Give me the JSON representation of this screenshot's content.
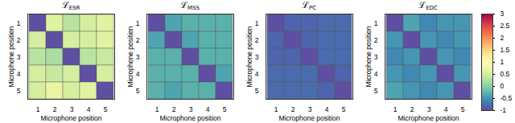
{
  "chart_data": [
    {
      "type": "heatmap",
      "title": "ℒESR",
      "x": [
        1,
        2,
        3,
        4,
        5
      ],
      "y": [
        1,
        2,
        3,
        4,
        5
      ],
      "xlabel": "Microphone position",
      "ylabel": "Microphone position",
      "zlim": [
        -1,
        3
      ],
      "values": [
        [
          -1,
          0.6,
          0.3,
          0.5,
          0.6
        ],
        [
          0.5,
          -1,
          0.5,
          0.5,
          0.6
        ],
        [
          0.3,
          0.2,
          -1,
          0.3,
          0.4
        ],
        [
          0.5,
          0.4,
          0.5,
          -1,
          0.5
        ],
        [
          0.5,
          0.7,
          0.5,
          0.6,
          -1
        ]
      ]
    },
    {
      "type": "heatmap",
      "title": "ℒMSS",
      "x": [
        1,
        2,
        3,
        4,
        5
      ],
      "y": [
        1,
        2,
        3,
        4,
        5
      ],
      "xlabel": "Microphone position",
      "ylabel": "Microphone position",
      "zlim": [
        -1,
        3
      ],
      "values": [
        [
          -1,
          -0.4,
          -0.3,
          -0.3,
          -0.3
        ],
        [
          -0.4,
          -1,
          -0.4,
          -0.3,
          -0.3
        ],
        [
          -0.3,
          -0.3,
          -1,
          -0.3,
          -0.3
        ],
        [
          -0.3,
          -0.3,
          -0.3,
          -1,
          -0.4
        ],
        [
          -0.3,
          -0.4,
          -0.3,
          -0.3,
          -1
        ]
      ]
    },
    {
      "type": "heatmap",
      "title": "ℒPC",
      "x": [
        1,
        2,
        3,
        4,
        5
      ],
      "y": [
        1,
        2,
        3,
        4,
        5
      ],
      "xlabel": "Microphone position",
      "ylabel": "Microphone position",
      "zlim": [
        -1,
        3
      ],
      "values": [
        [
          -1,
          -0.85,
          -0.85,
          -0.8,
          -0.8
        ],
        [
          -0.85,
          -1,
          -0.85,
          -0.8,
          -0.8
        ],
        [
          -0.85,
          -0.85,
          -1,
          -0.8,
          -0.8
        ],
        [
          -0.8,
          -0.8,
          -0.8,
          -1,
          -0.85
        ],
        [
          -0.8,
          -0.8,
          -0.8,
          -0.85,
          -1
        ]
      ]
    },
    {
      "type": "heatmap",
      "title": "ℒEDC",
      "x": [
        1,
        2,
        3,
        4,
        5
      ],
      "y": [
        1,
        2,
        3,
        4,
        5
      ],
      "xlabel": "Microphone position",
      "ylabel": "Microphone position",
      "zlim": [
        -1,
        3
      ],
      "zticks": [
        -1,
        -0.5,
        0,
        0.5,
        1,
        1.5,
        2,
        2.5,
        3
      ],
      "values": [
        [
          -1,
          -0.4,
          -0.6,
          -0.5,
          -0.5
        ],
        [
          -0.5,
          -1,
          -0.5,
          -0.6,
          -0.5
        ],
        [
          -0.6,
          -0.5,
          -1,
          -0.5,
          -0.6
        ],
        [
          -0.5,
          -0.6,
          -0.5,
          -1,
          -0.5
        ],
        [
          -0.4,
          -0.5,
          -0.6,
          -0.5,
          -1
        ]
      ]
    }
  ]
}
